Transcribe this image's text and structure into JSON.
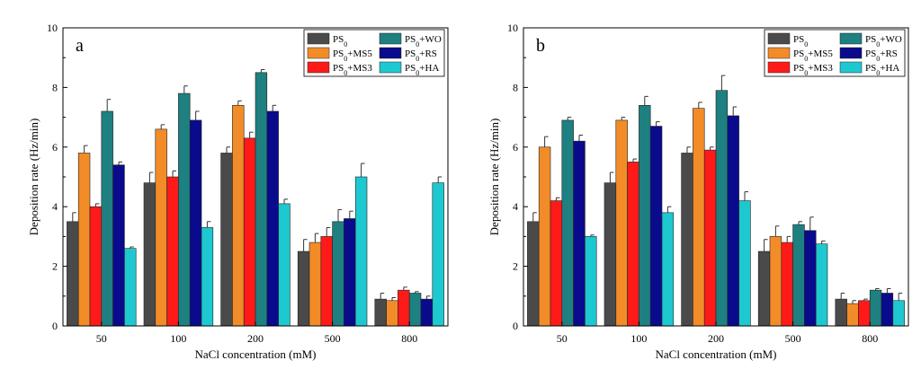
{
  "chart_data": [
    {
      "type": "bar",
      "panel_label": "a",
      "xlabel": "NaCl concentration (mM)",
      "ylabel": "Deposition rate (Hz/min)",
      "ylim": [
        0,
        10
      ],
      "yticks": [
        "0",
        "2",
        "4",
        "6",
        "8",
        "10"
      ],
      "categories": [
        "50",
        "100",
        "200",
        "500",
        "800"
      ],
      "legend_position": "top-right",
      "series": [
        {
          "name_main": "PS",
          "name_sub": "0",
          "name_suffix": "",
          "color": "#4a4a4a",
          "values": [
            3.5,
            4.8,
            5.8,
            2.5,
            0.9
          ],
          "errors": [
            0.3,
            0.35,
            0.2,
            0.4,
            0.2
          ]
        },
        {
          "name_main": "PS",
          "name_sub": "0",
          "name_suffix": "+MS5",
          "color": "#f28c28",
          "values": [
            5.8,
            6.6,
            7.4,
            2.8,
            0.85
          ],
          "errors": [
            0.25,
            0.15,
            0.15,
            0.3,
            0.1
          ]
        },
        {
          "name_main": "PS",
          "name_sub": "0",
          "name_suffix": "+MS3",
          "color": "#ff1a1a",
          "values": [
            4.0,
            5.0,
            6.3,
            3.0,
            1.2
          ],
          "errors": [
            0.1,
            0.2,
            0.2,
            0.3,
            0.1
          ]
        },
        {
          "name_main": "PS",
          "name_sub": "0",
          "name_suffix": "+WO",
          "color": "#1e8080",
          "values": [
            7.2,
            7.8,
            8.5,
            3.5,
            1.1
          ],
          "errors": [
            0.4,
            0.25,
            0.1,
            0.4,
            0.05
          ]
        },
        {
          "name_main": "PS",
          "name_sub": "0",
          "name_suffix": "+RS",
          "color": "#0a0a8c",
          "values": [
            5.4,
            6.9,
            7.2,
            3.6,
            0.9
          ],
          "errors": [
            0.1,
            0.3,
            0.2,
            0.25,
            0.1
          ]
        },
        {
          "name_main": "PS",
          "name_sub": "0",
          "name_suffix": "+HA",
          "color": "#1ec8d0",
          "values": [
            2.6,
            3.3,
            4.1,
            5.0,
            4.8
          ],
          "errors": [
            0.05,
            0.2,
            0.15,
            0.45,
            0.2
          ]
        }
      ]
    },
    {
      "type": "bar",
      "panel_label": "b",
      "xlabel": "NaCl concentration (mM)",
      "ylabel": "Deposition rate (Hz/min)",
      "ylim": [
        0,
        10
      ],
      "yticks": [
        "0",
        "2",
        "4",
        "6",
        "8",
        "10"
      ],
      "categories": [
        "50",
        "100",
        "200",
        "500",
        "800"
      ],
      "legend_position": "top-right",
      "series": [
        {
          "name_main": "PS",
          "name_sub": "0",
          "name_suffix": "",
          "color": "#4a4a4a",
          "values": [
            3.5,
            4.8,
            5.8,
            2.5,
            0.9
          ],
          "errors": [
            0.3,
            0.35,
            0.2,
            0.4,
            0.2
          ]
        },
        {
          "name_main": "PS",
          "name_sub": "0",
          "name_suffix": "+MS5",
          "color": "#f28c28",
          "values": [
            6.0,
            6.9,
            7.3,
            3.0,
            0.75
          ],
          "errors": [
            0.35,
            0.1,
            0.2,
            0.35,
            0.1
          ]
        },
        {
          "name_main": "PS",
          "name_sub": "0",
          "name_suffix": "+MS3",
          "color": "#ff1a1a",
          "values": [
            4.2,
            5.5,
            5.9,
            2.8,
            0.85
          ],
          "errors": [
            0.1,
            0.1,
            0.1,
            0.2,
            0.05
          ]
        },
        {
          "name_main": "PS",
          "name_sub": "0",
          "name_suffix": "+WO",
          "color": "#1e8080",
          "values": [
            6.9,
            7.4,
            7.9,
            3.4,
            1.2
          ],
          "errors": [
            0.1,
            0.3,
            0.5,
            0.1,
            0.05
          ]
        },
        {
          "name_main": "PS",
          "name_sub": "0",
          "name_suffix": "+RS",
          "color": "#0a0a8c",
          "values": [
            6.2,
            6.7,
            7.05,
            3.2,
            1.1
          ],
          "errors": [
            0.2,
            0.15,
            0.3,
            0.45,
            0.15
          ]
        },
        {
          "name_main": "PS",
          "name_sub": "0",
          "name_suffix": "+HA",
          "color": "#1ec8d0",
          "values": [
            3.0,
            3.8,
            4.2,
            2.75,
            0.85
          ],
          "errors": [
            0.05,
            0.2,
            0.3,
            0.1,
            0.25
          ]
        }
      ]
    }
  ]
}
